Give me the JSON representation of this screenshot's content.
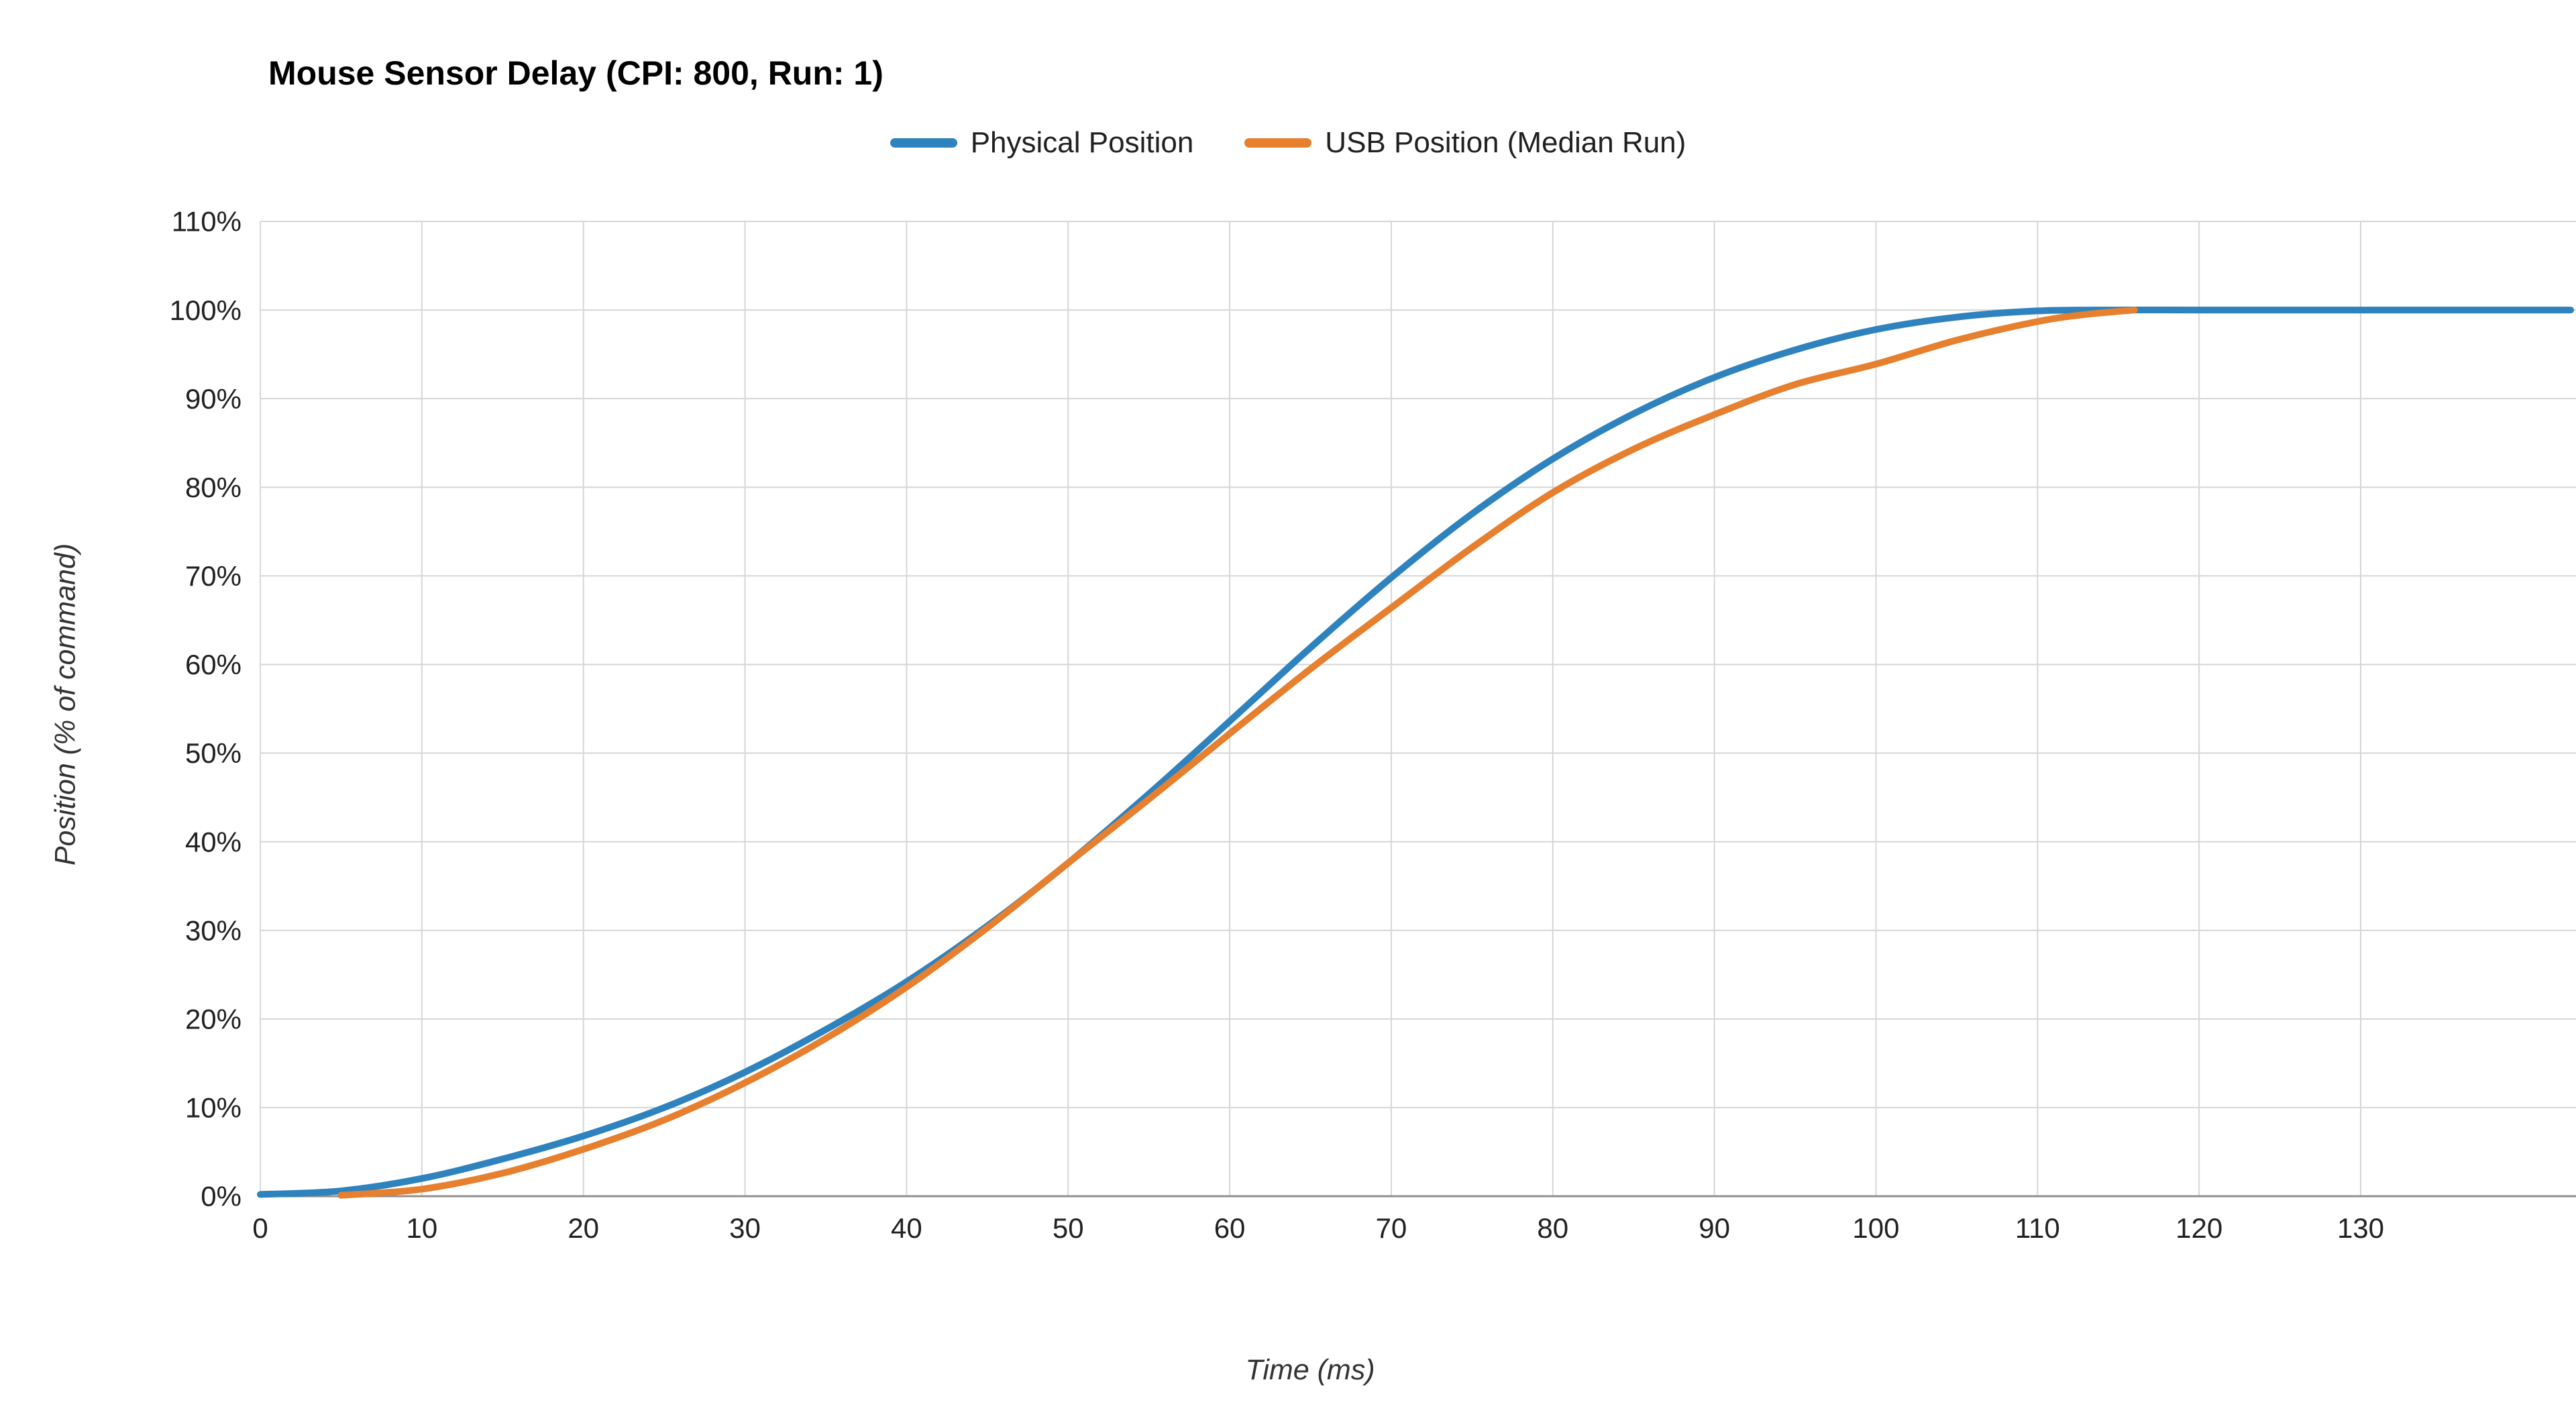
{
  "chart_data": {
    "type": "line",
    "title": "Mouse Sensor Delay (CPI: 800, Run: 1)",
    "xlabel": "Time (ms)",
    "ylabel": "Position (% of command)",
    "legend_position": "top-center",
    "grid": true,
    "x_ticks": [
      0,
      10,
      20,
      30,
      40,
      50,
      60,
      70,
      80,
      90,
      100,
      110,
      120,
      130
    ],
    "y_ticks": [
      0,
      10,
      20,
      30,
      40,
      50,
      60,
      70,
      80,
      90,
      100,
      110
    ],
    "y_tick_suffix": "%",
    "ylim": [
      0,
      110
    ],
    "x_visible_range": [
      0,
      143
    ],
    "series": [
      {
        "name": "Physical Position",
        "color": "#2E82BE",
        "points": [
          [
            0,
            0.2
          ],
          [
            5,
            0.6
          ],
          [
            10,
            2.0
          ],
          [
            15,
            4.2
          ],
          [
            20,
            6.8
          ],
          [
            25,
            10.0
          ],
          [
            30,
            14.0
          ],
          [
            35,
            18.8
          ],
          [
            40,
            24.2
          ],
          [
            45,
            30.5
          ],
          [
            50,
            37.6
          ],
          [
            55,
            45.4
          ],
          [
            60,
            53.6
          ],
          [
            65,
            61.9
          ],
          [
            70,
            69.8
          ],
          [
            75,
            77.0
          ],
          [
            80,
            83.2
          ],
          [
            85,
            88.3
          ],
          [
            90,
            92.4
          ],
          [
            95,
            95.5
          ],
          [
            100,
            97.8
          ],
          [
            105,
            99.2
          ],
          [
            110,
            99.9
          ],
          [
            115,
            100
          ],
          [
            120,
            100
          ],
          [
            125,
            100
          ],
          [
            130,
            100
          ],
          [
            135,
            100
          ],
          [
            140,
            100
          ],
          [
            143,
            100
          ]
        ]
      },
      {
        "name": "USB Position (Median Run)",
        "color": "#E67F2E",
        "points": [
          [
            5,
            0.1
          ],
          [
            10,
            0.8
          ],
          [
            15,
            2.6
          ],
          [
            20,
            5.3
          ],
          [
            25,
            8.6
          ],
          [
            30,
            12.8
          ],
          [
            35,
            17.8
          ],
          [
            40,
            23.6
          ],
          [
            45,
            30.3
          ],
          [
            50,
            37.6
          ],
          [
            55,
            44.8
          ],
          [
            60,
            52.2
          ],
          [
            65,
            59.5
          ],
          [
            70,
            66.4
          ],
          [
            75,
            73.2
          ],
          [
            80,
            79.4
          ],
          [
            85,
            84.3
          ],
          [
            90,
            88.2
          ],
          [
            95,
            91.6
          ],
          [
            100,
            93.9
          ],
          [
            105,
            96.6
          ],
          [
            110,
            98.7
          ],
          [
            113,
            99.5
          ],
          [
            116,
            100
          ]
        ]
      }
    ]
  }
}
